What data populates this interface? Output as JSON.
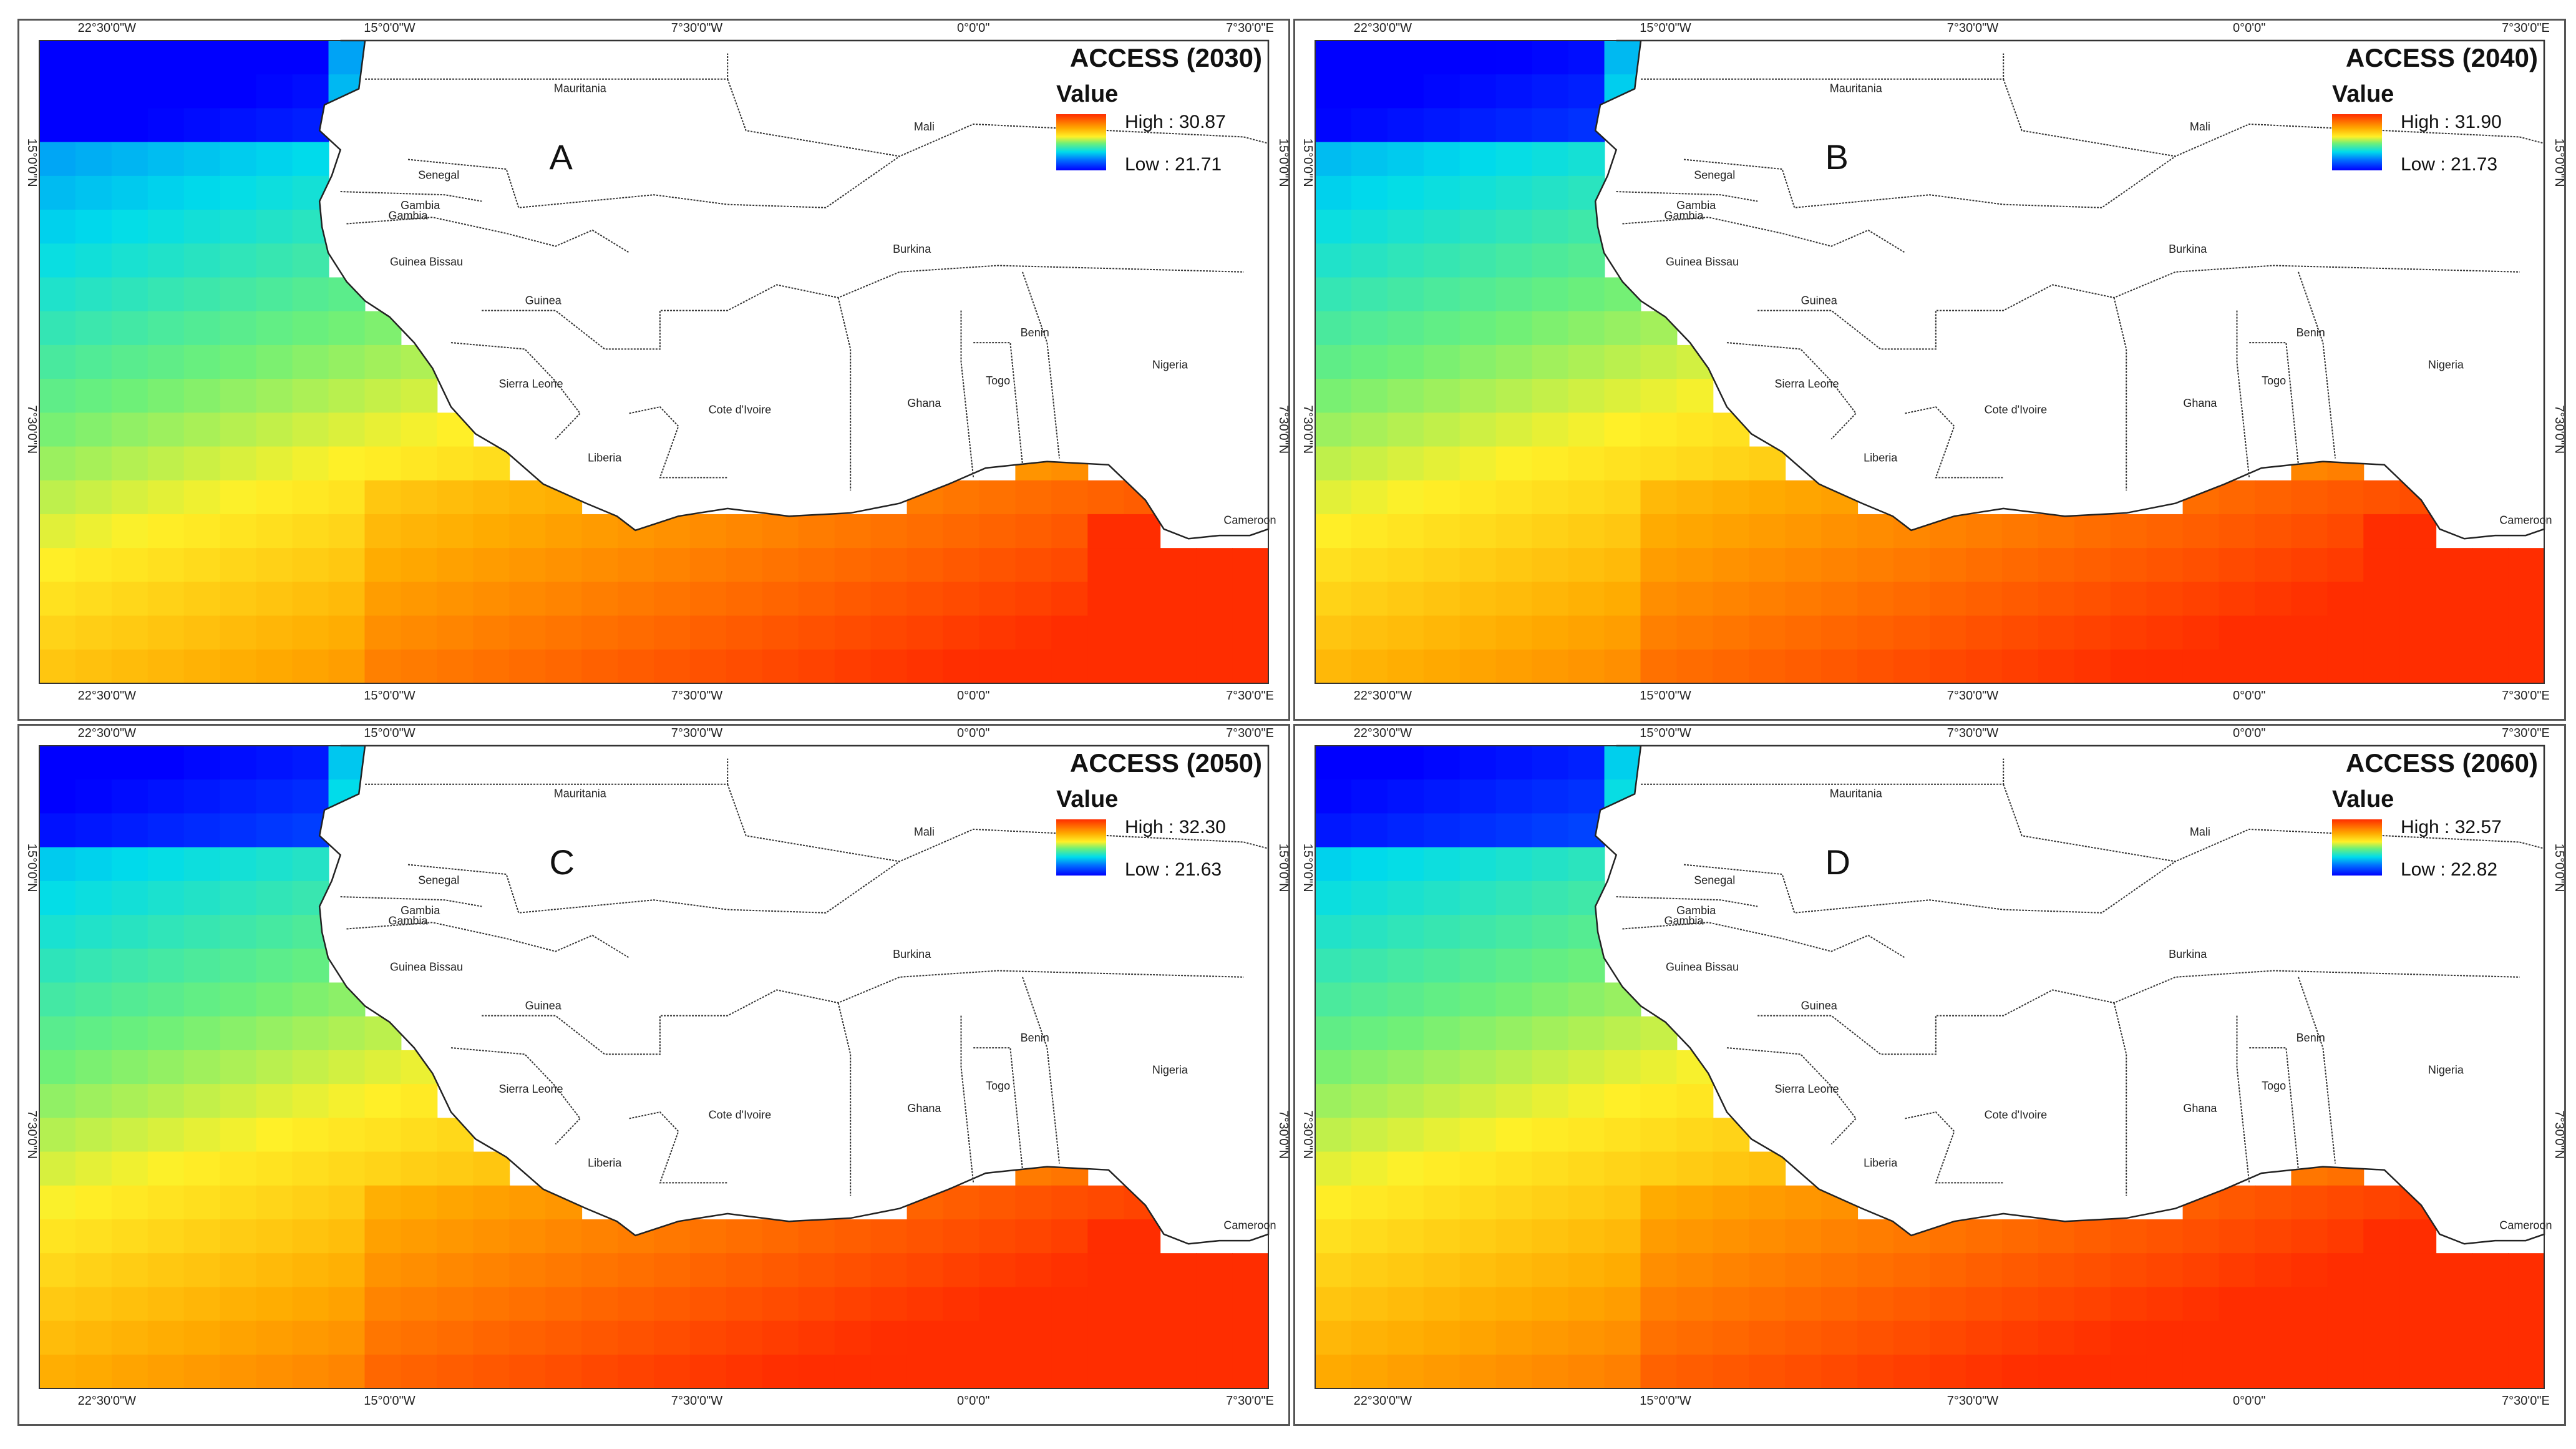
{
  "figure": {
    "axis_labels": {
      "top": [
        "22°30'0\"W",
        "15°0'0\"W",
        "7°30'0\"W",
        "0°0'0\"",
        "7°30'0\"E"
      ],
      "side": [
        "15°0'0\"N",
        "7°30'0\"N"
      ]
    },
    "countries": [
      "Mauritania",
      "Mali",
      "Senegal",
      "Gambia",
      "Gambia",
      "Guinea Bissau",
      "Guinea",
      "Burkina",
      "Benin",
      "Nigeria",
      "Sierra Leone",
      "Togo",
      "Ghana",
      "Cote d'Ivoire",
      "Liberia",
      "Cameroon"
    ],
    "legend_title": "Value",
    "colors": {
      "low": "#0000ff",
      "mid": "#00e0e0",
      "high": "#ff3300"
    }
  },
  "chart_data": [
    {
      "type": "heatmap",
      "letter": "A",
      "title": "ACCESS (2030)",
      "legend_high": "High : 30.87",
      "legend_low": "Low : 21.71",
      "high_value": 30.87,
      "low_value": 21.71
    },
    {
      "type": "heatmap",
      "letter": "B",
      "title": "ACCESS (2040)",
      "legend_high": "High : 31.90",
      "legend_low": "Low : 21.73",
      "high_value": 31.9,
      "low_value": 21.73
    },
    {
      "type": "heatmap",
      "letter": "C",
      "title": "ACCESS (2050)",
      "legend_high": "High : 32.30",
      "legend_low": "Low : 21.63",
      "high_value": 32.3,
      "low_value": 21.63
    },
    {
      "type": "heatmap",
      "letter": "D",
      "title": "ACCESS (2060)",
      "legend_high": "High : 32.57",
      "legend_low": "Low : 22.82",
      "high_value": 32.57,
      "low_value": 22.82
    }
  ]
}
